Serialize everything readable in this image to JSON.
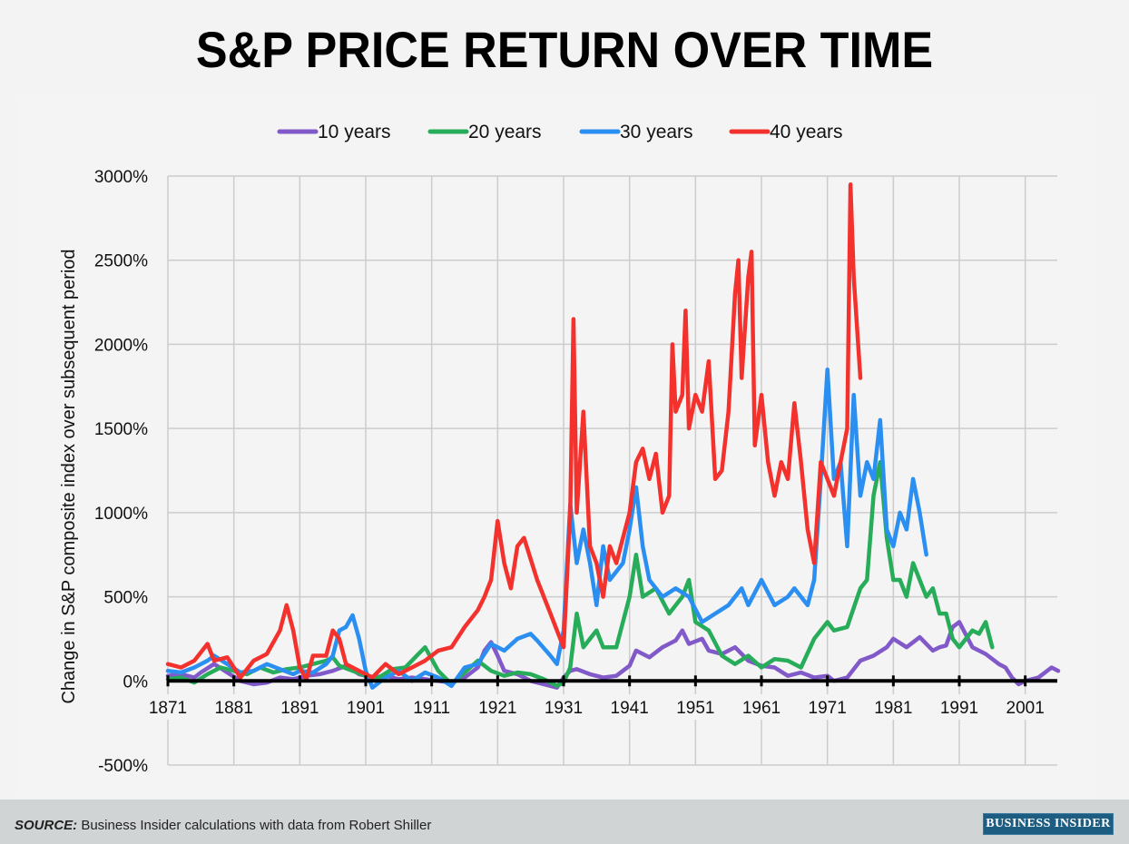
{
  "title": "S&P PRICE RETURN OVER TIME",
  "footer": {
    "source_label": "SOURCE:",
    "source_text": " Business Insider calculations with data from Robert Shiller",
    "logo": "BUSINESS INSIDER"
  },
  "chart_data": {
    "type": "line",
    "title": "S&P PRICE RETURN OVER TIME",
    "xlabel": "",
    "ylabel": "Change in S&P composite index over subsequent period",
    "xlim": [
      1871,
      2006
    ],
    "ylim": [
      -500,
      3000
    ],
    "x_ticks": [
      1871,
      1881,
      1891,
      1901,
      1911,
      1921,
      1931,
      1941,
      1951,
      1961,
      1971,
      1981,
      1991,
      2001
    ],
    "x_tick_labels": [
      "1871",
      "1881",
      "1891",
      "1901",
      "1911",
      "1921",
      "1931",
      "1941",
      "1951",
      "1961",
      "1971",
      "1981",
      "1991",
      "2001"
    ],
    "y_ticks": [
      -500,
      0,
      500,
      1000,
      1500,
      2000,
      2500,
      3000
    ],
    "y_tick_labels": [
      "-500%",
      "0%",
      "500%",
      "1000%",
      "1500%",
      "2000%",
      "2500%",
      "3000%"
    ],
    "grid": true,
    "legend_position": "top-center",
    "series": [
      {
        "name": "10 years",
        "color": "#8159c9",
        "x": [
          1871,
          1873,
          1875,
          1876,
          1878,
          1880,
          1882,
          1884,
          1886,
          1888,
          1890,
          1892,
          1894,
          1896,
          1898,
          1900,
          1902,
          1904,
          1906,
          1908,
          1910,
          1912,
          1914,
          1916,
          1918,
          1919,
          1920,
          1921,
          1922,
          1924,
          1926,
          1928,
          1929,
          1930,
          1931,
          1932,
          1933,
          1935,
          1937,
          1939,
          1941,
          1942,
          1944,
          1946,
          1948,
          1949,
          1950,
          1952,
          1953,
          1955,
          1957,
          1959,
          1961,
          1963,
          1965,
          1967,
          1969,
          1971,
          1972,
          1974,
          1976,
          1978,
          1980,
          1981,
          1983,
          1985,
          1987,
          1988,
          1989,
          1990,
          1991,
          1993,
          1995,
          1997,
          1998,
          1999,
          2000,
          2001,
          2003,
          2005,
          2006
        ],
        "y": [
          30,
          40,
          20,
          50,
          100,
          50,
          0,
          -20,
          -10,
          20,
          10,
          30,
          40,
          60,
          90,
          40,
          20,
          30,
          10,
          20,
          10,
          0,
          -10,
          20,
          80,
          180,
          230,
          150,
          60,
          40,
          0,
          -20,
          -30,
          -40,
          20,
          60,
          70,
          40,
          20,
          30,
          90,
          180,
          140,
          200,
          240,
          300,
          220,
          250,
          180,
          160,
          200,
          120,
          90,
          80,
          30,
          50,
          20,
          30,
          0,
          20,
          120,
          150,
          200,
          250,
          200,
          260,
          180,
          200,
          210,
          320,
          350,
          200,
          160,
          100,
          80,
          20,
          -20,
          0,
          20,
          80,
          60
        ]
      },
      {
        "name": "20 years",
        "color": "#27ac5a",
        "x": [
          1871,
          1873,
          1875,
          1877,
          1879,
          1881,
          1883,
          1885,
          1887,
          1889,
          1891,
          1893,
          1895,
          1896,
          1897,
          1899,
          1901,
          1903,
          1905,
          1907,
          1909,
          1910,
          1912,
          1914,
          1916,
          1918,
          1920,
          1922,
          1924,
          1926,
          1928,
          1930,
          1931,
          1932,
          1933,
          1934,
          1936,
          1937,
          1939,
          1941,
          1942,
          1943,
          1945,
          1947,
          1949,
          1950,
          1951,
          1953,
          1955,
          1957,
          1959,
          1961,
          1963,
          1965,
          1967,
          1969,
          1971,
          1972,
          1974,
          1976,
          1977,
          1978,
          1979,
          1980,
          1981,
          1982,
          1983,
          1984,
          1985,
          1986,
          1987,
          1988,
          1989,
          1990,
          1991,
          1993,
          1994,
          1995,
          1996
        ],
        "y": [
          10,
          20,
          -10,
          40,
          80,
          60,
          40,
          80,
          50,
          70,
          80,
          100,
          120,
          140,
          90,
          60,
          30,
          20,
          70,
          80,
          160,
          200,
          60,
          -20,
          50,
          120,
          60,
          30,
          50,
          40,
          10,
          -30,
          -10,
          80,
          400,
          200,
          300,
          200,
          200,
          500,
          750,
          500,
          550,
          400,
          500,
          600,
          350,
          300,
          150,
          100,
          150,
          80,
          130,
          120,
          80,
          250,
          350,
          300,
          320,
          550,
          600,
          1100,
          1300,
          850,
          600,
          600,
          500,
          700,
          600,
          500,
          550,
          400,
          400,
          250,
          200,
          300,
          280,
          350,
          200
        ]
      },
      {
        "name": "30 years",
        "color": "#2b8ef1",
        "x": [
          1871,
          1873,
          1875,
          1877,
          1878,
          1880,
          1882,
          1884,
          1886,
          1888,
          1890,
          1891,
          1893,
          1895,
          1896,
          1897,
          1898,
          1899,
          1900,
          1901,
          1902,
          1904,
          1906,
          1908,
          1910,
          1912,
          1914,
          1916,
          1918,
          1920,
          1922,
          1924,
          1926,
          1927,
          1929,
          1930,
          1931,
          1932,
          1933,
          1934,
          1935,
          1936,
          1937,
          1938,
          1940,
          1941,
          1942,
          1943,
          1944,
          1946,
          1948,
          1950,
          1952,
          1954,
          1956,
          1958,
          1959,
          1961,
          1963,
          1965,
          1966,
          1968,
          1969,
          1970,
          1971,
          1972,
          1973,
          1974,
          1975,
          1976,
          1977,
          1978,
          1979,
          1980,
          1981,
          1982,
          1983,
          1984,
          1985,
          1986
        ],
        "y": [
          60,
          50,
          80,
          120,
          150,
          100,
          50,
          60,
          100,
          70,
          40,
          60,
          50,
          100,
          150,
          300,
          320,
          390,
          250,
          60,
          -40,
          20,
          60,
          0,
          50,
          20,
          -30,
          80,
          100,
          220,
          180,
          250,
          280,
          240,
          150,
          100,
          300,
          1050,
          700,
          900,
          700,
          450,
          800,
          600,
          700,
          900,
          1150,
          800,
          600,
          500,
          550,
          500,
          350,
          400,
          450,
          550,
          450,
          600,
          450,
          500,
          550,
          450,
          600,
          1200,
          1850,
          1200,
          1300,
          800,
          1700,
          1100,
          1300,
          1200,
          1550,
          900,
          800,
          1000,
          900,
          1200,
          1000,
          750
        ]
      },
      {
        "name": "40 years",
        "color": "#f3322e",
        "x": [
          1871,
          1873,
          1875,
          1877,
          1878,
          1880,
          1882,
          1884,
          1886,
          1888,
          1889,
          1890,
          1891,
          1892,
          1893,
          1895,
          1896,
          1897,
          1898,
          1900,
          1902,
          1904,
          1906,
          1908,
          1910,
          1912,
          1914,
          1916,
          1918,
          1919,
          1920,
          1921,
          1922,
          1923,
          1924,
          1925,
          1927,
          1929,
          1930,
          1931,
          1932,
          1932.5,
          1933,
          1934,
          1935,
          1936,
          1937,
          1938,
          1939,
          1940,
          1941,
          1942,
          1943,
          1944,
          1945,
          1946,
          1947,
          1947.5,
          1948,
          1949,
          1949.5,
          1950,
          1951,
          1952,
          1953,
          1954,
          1955,
          1956,
          1957,
          1957.5,
          1958,
          1959,
          1959.5,
          1960,
          1961,
          1962,
          1963,
          1964,
          1965,
          1966,
          1967,
          1968,
          1969,
          1970,
          1971,
          1972,
          1973,
          1974,
          1974.5,
          1975,
          1976
        ],
        "y": [
          100,
          80,
          120,
          220,
          120,
          140,
          20,
          120,
          160,
          300,
          450,
          300,
          80,
          10,
          150,
          150,
          300,
          250,
          100,
          60,
          20,
          100,
          40,
          80,
          120,
          180,
          200,
          320,
          420,
          500,
          600,
          950,
          700,
          550,
          800,
          850,
          600,
          400,
          300,
          200,
          1000,
          2150,
          1000,
          1600,
          800,
          700,
          500,
          800,
          700,
          850,
          1000,
          1300,
          1380,
          1200,
          1350,
          1000,
          1100,
          2000,
          1600,
          1700,
          2200,
          1500,
          1700,
          1600,
          1900,
          1200,
          1250,
          1600,
          2300,
          2500,
          1800,
          2400,
          2550,
          1400,
          1700,
          1300,
          1100,
          1300,
          1200,
          1650,
          1300,
          900,
          700,
          1300,
          1200,
          1100,
          1300,
          1500,
          2950,
          2400,
          1800
        ]
      }
    ]
  }
}
